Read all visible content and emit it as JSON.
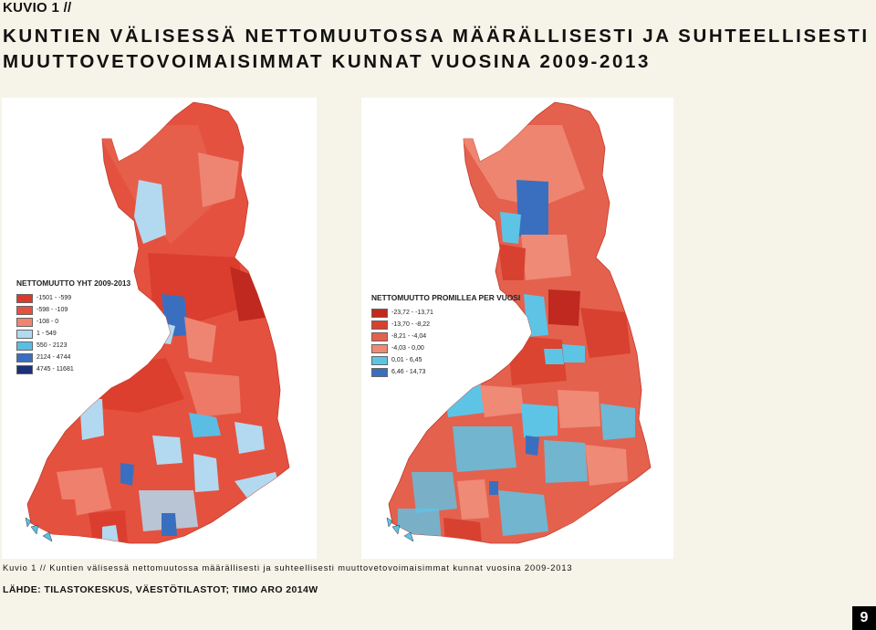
{
  "header": {
    "kuvio_label": "KUVIO 1 //",
    "title_line1": "KUNTIEN VÄLISESSÄ NETTOMUUTOSSA MÄÄRÄLLISESTI JA SUHTEELLISESTI",
    "title_line2": "MUUTTOVETOVOIMAISIMMAT KUNNAT VUOSINA 2009-2013"
  },
  "map_left": {
    "legend_title": "NETTOMUUTTO YHT 2009-2013",
    "legend_items": [
      {
        "label": "-1501 - -599",
        "color": "#d93b2b"
      },
      {
        "label": "-598 - -109",
        "color": "#e5513f"
      },
      {
        "label": "-108 - 0",
        "color": "#ee8572"
      },
      {
        "label": "1 - 549",
        "color": "#b2d9ef"
      },
      {
        "label": "550 - 2123",
        "color": "#5bbde3"
      },
      {
        "label": "2124 - 4744",
        "color": "#3a6fc0"
      },
      {
        "label": "4745 - 11681",
        "color": "#1b2f7a"
      }
    ]
  },
  "map_right": {
    "legend_title": "NETTOMUUTTO PROMILLEA PER VUOSI",
    "legend_items": [
      {
        "label": "-23,72 - -13,71",
        "color": "#c0291f"
      },
      {
        "label": "-13,70 - -8,22",
        "color": "#d8412f"
      },
      {
        "label": "-8,21 - -4,04",
        "color": "#e4614e"
      },
      {
        "label": "-4,03 - 0,00",
        "color": "#ee8a76"
      },
      {
        "label": "0,01 - 6,45",
        "color": "#5ec4e6"
      },
      {
        "label": "6,46 - 14,73",
        "color": "#3a6fc0"
      }
    ]
  },
  "caption": "Kuvio 1 // Kuntien välisessä nettomuutossa määrällisesti ja suhteellisesti muuttovetovoimaisimmat kunnat vuosina 2009-2013",
  "source": "LÄHDE: TILASTOKESKUS, VÄESTÖTILASTOT; TIMO ARO 2014W",
  "page_number": "9"
}
